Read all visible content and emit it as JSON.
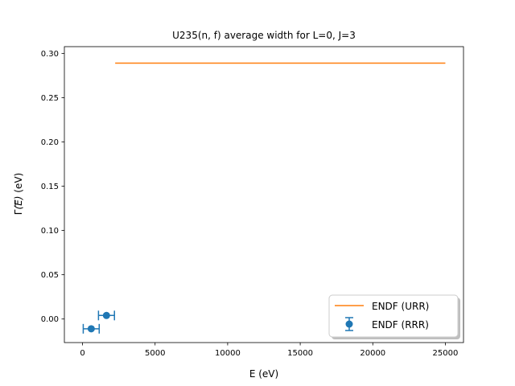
{
  "chart_data": {
    "type": "line",
    "title": "U235(n, f) average width for L=0, J=3",
    "xlabel": "E (eV)",
    "ylabel_prefix": "Γ",
    "ylabel_mid": "(E)",
    "ylabel_suffix": " (eV)",
    "xlim": [
      -1250,
      26250
    ],
    "ylim": [
      -0.0266,
      0.3076
    ],
    "x_ticks": [
      0,
      5000,
      10000,
      15000,
      20000,
      25000
    ],
    "x_tick_labels": [
      "0",
      "5000",
      "10000",
      "15000",
      "20000",
      "25000"
    ],
    "y_ticks": [
      0.0,
      0.05,
      0.1,
      0.15,
      0.2,
      0.25,
      0.3
    ],
    "y_tick_labels": [
      "0.00",
      "0.05",
      "0.10",
      "0.15",
      "0.20",
      "0.25",
      "0.30"
    ],
    "grid": false,
    "legend_position": "lower-right",
    "series": [
      {
        "name": "ENDF (URR)",
        "kind": "line",
        "color": "#ff7f0e",
        "x": [
          2250,
          25000
        ],
        "y": [
          0.289,
          0.289
        ]
      },
      {
        "name": "ENDF (RRR)",
        "kind": "errorbar",
        "color": "#1f77b4",
        "x": [
          600,
          1650
        ],
        "y": [
          -0.011,
          0.004
        ],
        "xerr_low": [
          550,
          550
        ],
        "xerr_high": [
          550,
          550
        ]
      }
    ]
  }
}
